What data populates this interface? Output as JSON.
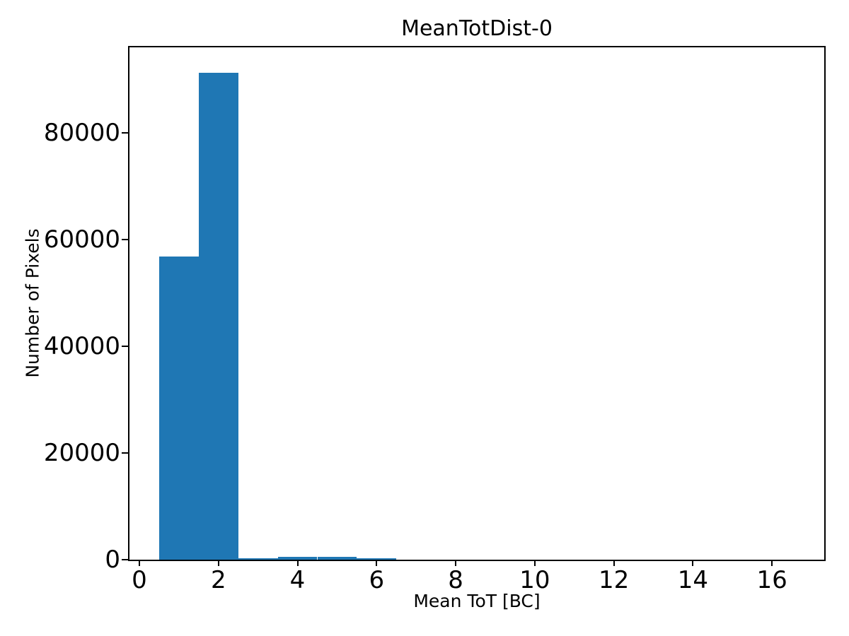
{
  "figure": {
    "background_color": "#ffffff",
    "text_color": "#000000"
  },
  "chart_data": {
    "type": "bar",
    "subtype": "histogram",
    "title": "MeanTotDist-0",
    "xlabel": "Mean ToT [BC]",
    "ylabel": "Number of Pixels",
    "bin_edges": [
      0.5,
      1.5,
      2.5,
      3.5,
      4.5,
      5.5,
      6.5,
      7.5,
      8.5,
      9.5,
      10.5,
      11.5,
      12.5,
      13.5,
      14.5,
      15.5,
      16.5
    ],
    "counts": [
      56800,
      91300,
      300,
      500,
      500,
      300,
      0,
      0,
      0,
      0,
      0,
      0,
      0,
      0,
      0,
      0
    ],
    "xticks": [
      0,
      2,
      4,
      6,
      8,
      10,
      12,
      14,
      16
    ],
    "yticks": [
      0,
      20000,
      40000,
      60000,
      80000
    ],
    "xlim": [
      -0.25,
      17.32
    ],
    "ylim": [
      0,
      96000
    ],
    "bar_color": "#1f77b4",
    "axis_color": "#000000",
    "grid": false,
    "legend": null
  }
}
